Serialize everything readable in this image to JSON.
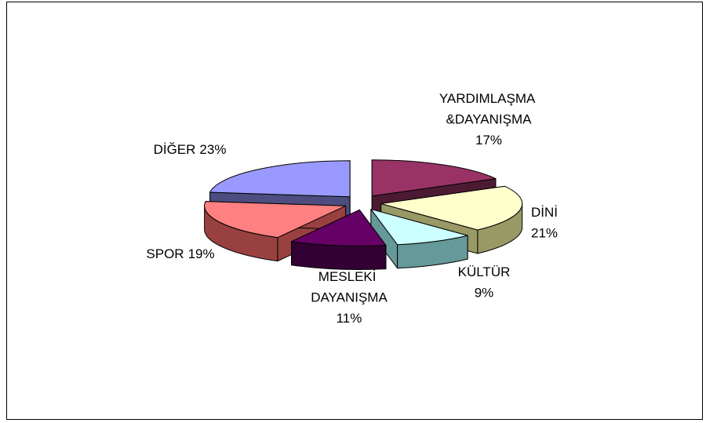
{
  "chart_data": {
    "type": "pie3d",
    "categories": [
      "YARDIMLAŞMA &DAYANIŞMA",
      "DİNİ",
      "KÜLTÜR",
      "MESLEKİ DAYANIŞMA",
      "SPOR",
      "DİĞER"
    ],
    "values": [
      17,
      21,
      9,
      11,
      19,
      23
    ],
    "value_labels": [
      "17%",
      "21%",
      "9%",
      "11%",
      "19%",
      "23%"
    ],
    "colors": [
      "#993366",
      "#ffffcc",
      "#ccffff",
      "#660066",
      "#ff8080",
      "#9999ff"
    ],
    "side_colors": [
      "#4d1a33",
      "#999966",
      "#669999",
      "#330033",
      "#994040",
      "#4d4d80"
    ],
    "exploded": true
  }
}
